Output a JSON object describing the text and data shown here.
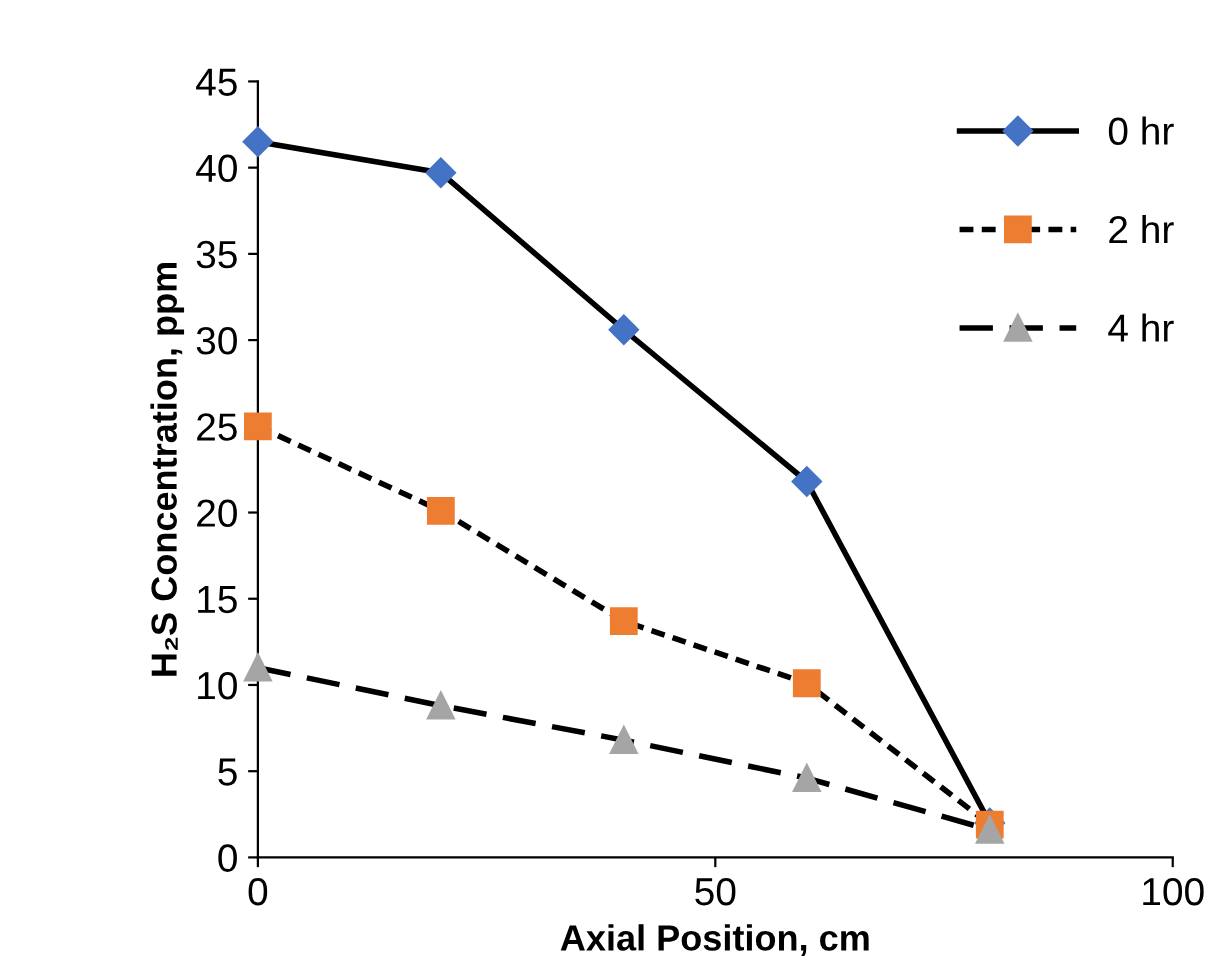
{
  "chart_data": {
    "type": "line",
    "xlabel": "Axial Position, cm",
    "ylabel": "H₂S Concentration, ppm",
    "x": [
      0,
      20,
      40,
      60,
      80
    ],
    "series": [
      {
        "name": "0 hr",
        "color": "#4472c4",
        "marker": "diamond",
        "line_style": "solid",
        "values": [
          41.5,
          39.7,
          30.6,
          21.8,
          2.0
        ]
      },
      {
        "name": "2 hr",
        "color": "#ed7d31",
        "marker": "square",
        "line_style": "dotted",
        "values": [
          25.0,
          20.1,
          13.7,
          10.1,
          1.9
        ]
      },
      {
        "name": "4 hr",
        "color": "#a5a5a5",
        "marker": "triangle",
        "line_style": "dashed",
        "values": [
          11.0,
          8.8,
          6.8,
          4.6,
          1.6
        ]
      }
    ],
    "xlim": [
      0,
      100
    ],
    "xticks": [
      0,
      50,
      100
    ],
    "ylim": [
      0,
      45
    ],
    "yticks": [
      0,
      5,
      10,
      15,
      20,
      25,
      30,
      35,
      40,
      45
    ],
    "grid": false,
    "legend": "top right"
  }
}
